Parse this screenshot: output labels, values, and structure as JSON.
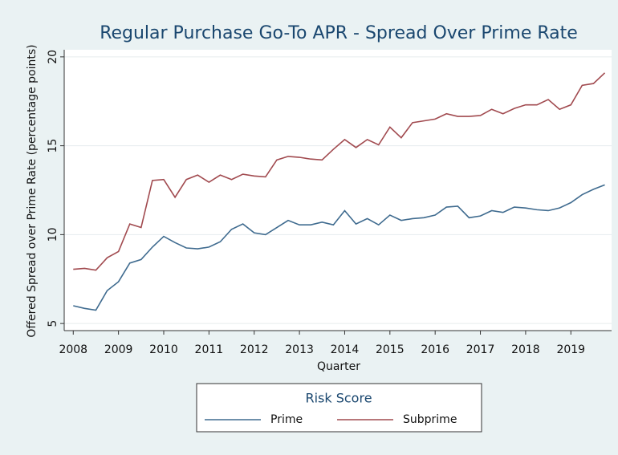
{
  "chart_data": {
    "type": "line",
    "title": "Regular Purchase Go-To APR - Spread Over Prime Rate",
    "x_label": "Quarter",
    "y_label": "Offered Spread over Prime Rate (percentage points)",
    "legend_title": "Risk Score",
    "legend_position": "bottom",
    "grid": true,
    "x": [
      2008,
      2008.25,
      2008.5,
      2008.75,
      2009,
      2009.25,
      2009.5,
      2009.75,
      2010,
      2010.25,
      2010.5,
      2010.75,
      2011,
      2011.25,
      2011.5,
      2011.75,
      2012,
      2012.25,
      2012.5,
      2012.75,
      2013,
      2013.25,
      2013.5,
      2013.75,
      2014,
      2014.25,
      2014.5,
      2014.75,
      2015,
      2015.25,
      2015.5,
      2015.75,
      2016,
      2016.25,
      2016.5,
      2016.75,
      2017,
      2017.25,
      2017.5,
      2017.75,
      2018,
      2018.25,
      2018.5,
      2018.75,
      2019,
      2019.25,
      2019.5,
      2019.75
    ],
    "xlim": [
      2007.8,
      2019.9
    ],
    "xticks": [
      2008,
      2009,
      2010,
      2011,
      2012,
      2013,
      2014,
      2015,
      2016,
      2017,
      2018,
      2019
    ],
    "ylim": [
      4.6,
      20.4
    ],
    "yticks": [
      5,
      10,
      15,
      20
    ],
    "series": [
      {
        "name": "Prime",
        "color": "#3f6b8f",
        "values": [
          6.0,
          5.85,
          5.75,
          6.85,
          7.35,
          8.4,
          8.6,
          9.3,
          9.9,
          9.55,
          9.25,
          9.2,
          9.3,
          9.6,
          10.3,
          10.6,
          10.1,
          10.0,
          10.4,
          10.8,
          10.55,
          10.55,
          10.7,
          10.55,
          11.35,
          10.6,
          10.9,
          10.55,
          11.1,
          10.8,
          10.9,
          10.95,
          11.1,
          11.55,
          11.6,
          10.95,
          11.05,
          11.35,
          11.25,
          11.55,
          11.5,
          11.4,
          11.35,
          11.5,
          11.8,
          12.25,
          12.55,
          12.8
        ]
      },
      {
        "name": "Subprime",
        "color": "#a14a4f",
        "values": [
          8.05,
          8.1,
          8.0,
          8.7,
          9.05,
          10.6,
          10.4,
          13.05,
          13.1,
          12.1,
          13.1,
          13.35,
          12.95,
          13.35,
          13.1,
          13.4,
          13.3,
          13.25,
          14.2,
          14.4,
          14.35,
          14.25,
          14.2,
          14.8,
          15.35,
          14.9,
          15.35,
          15.05,
          16.05,
          15.45,
          16.3,
          16.4,
          16.5,
          16.8,
          16.65,
          16.65,
          16.7,
          17.05,
          16.8,
          17.1,
          17.3,
          17.3,
          17.6,
          17.05,
          17.3,
          18.4,
          18.5,
          19.1
        ]
      }
    ]
  }
}
